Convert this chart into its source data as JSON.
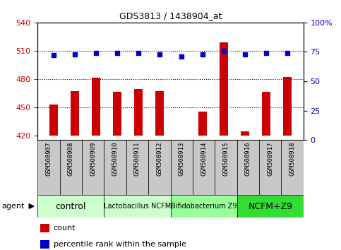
{
  "title": "GDS3813 / 1438904_at",
  "samples": [
    "GSM508907",
    "GSM508908",
    "GSM508909",
    "GSM508910",
    "GSM508911",
    "GSM508912",
    "GSM508913",
    "GSM508914",
    "GSM508915",
    "GSM508916",
    "GSM508917",
    "GSM508918"
  ],
  "counts": [
    453,
    467,
    481,
    466,
    469,
    467,
    420,
    445,
    519,
    424,
    466,
    482
  ],
  "percentile_ranks": [
    72,
    73,
    74,
    74,
    74,
    73,
    71,
    73,
    76,
    73,
    74,
    74
  ],
  "ylim_left": [
    415,
    540
  ],
  "ylim_right": [
    0,
    100
  ],
  "yticks_left": [
    420,
    450,
    480,
    510,
    540
  ],
  "yticks_right": [
    0,
    25,
    50,
    75,
    100
  ],
  "hlines": [
    450,
    480,
    510
  ],
  "bar_color": "#cc0000",
  "dot_color": "#0000cc",
  "bar_bottom": 420,
  "groups": [
    {
      "label": "control",
      "start": 0,
      "end": 3,
      "color": "#ccffcc",
      "fontsize": 9
    },
    {
      "label": "Lactobacillus NCFM",
      "start": 3,
      "end": 6,
      "color": "#ccffcc",
      "fontsize": 7
    },
    {
      "label": "Bifidobacterium Z9",
      "start": 6,
      "end": 9,
      "color": "#99ff99",
      "fontsize": 7
    },
    {
      "label": "NCFM+Z9",
      "start": 9,
      "end": 12,
      "color": "#33dd33",
      "fontsize": 9
    }
  ],
  "legend_count_color": "#cc0000",
  "legend_dot_color": "#0000cc",
  "bar_width": 0.4,
  "cell_bg": "#c8c8c8",
  "plot_bg": "#ffffff"
}
